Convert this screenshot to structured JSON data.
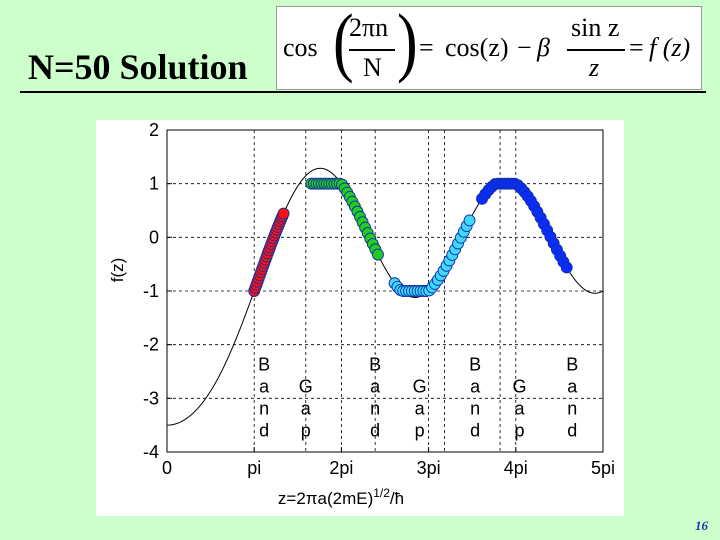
{
  "slide": {
    "title": "N=50 Solution",
    "equation": {
      "cos_left": "cos",
      "numerator_left": "2πn",
      "denominator_left": "N",
      "equals1": "=",
      "cos_right": "cos(z)",
      "minus": "−",
      "beta": "β",
      "numerator_right": "sin z",
      "denominator_right": "z",
      "equals2": "=",
      "rhs": "f (z)"
    },
    "page_number": "16"
  },
  "chart_data": {
    "type": "line",
    "title": "",
    "xlabel_main": "z=2πa(2mE)",
    "xlabel_sup": "1/2",
    "xlabel_end": "/ħ",
    "ylabel": "f(z)",
    "xlim": [
      0,
      15.708
    ],
    "ylim": [
      -4,
      2
    ],
    "grid": true,
    "x_ticks": [
      {
        "value": 0,
        "label": "0"
      },
      {
        "value": 3.1416,
        "label": "pi"
      },
      {
        "value": 6.2832,
        "label": "2pi"
      },
      {
        "value": 9.4248,
        "label": "3pi"
      },
      {
        "value": 12.5664,
        "label": "4pi"
      },
      {
        "value": 15.708,
        "label": "5pi"
      }
    ],
    "y_ticks": [
      {
        "value": 2,
        "label": "2"
      },
      {
        "value": 1,
        "label": "1"
      },
      {
        "value": 0,
        "label": "0"
      },
      {
        "value": -1,
        "label": "-1"
      },
      {
        "value": -2,
        "label": "-2"
      },
      {
        "value": -3,
        "label": "-3"
      },
      {
        "value": -4,
        "label": "-4"
      }
    ],
    "grid_x_extra": [
      5.0,
      7.5,
      10.0,
      12.0
    ],
    "curve": {
      "function": "cos(z) - beta*sin(z)/z",
      "beta": 4.5,
      "x_range": [
        0.02,
        15.708
      ]
    },
    "bands": [
      {
        "color": "#ff1010",
        "x_range": [
          3.1416,
          4.2
        ]
      },
      {
        "color": "#22cc22",
        "x_range": [
          5.2,
          7.6
        ]
      },
      {
        "color": "#40d8ff",
        "x_range": [
          8.2,
          10.9
        ]
      },
      {
        "color": "#0a2cff",
        "x_range": [
          11.35,
          14.4
        ]
      }
    ],
    "annotations": [
      {
        "text": "Band",
        "x": 3.5,
        "y": -3.1
      },
      {
        "text": "Gap",
        "x": 5.0,
        "y": -3.3
      },
      {
        "text": "Band",
        "x": 7.5,
        "y": -3.1
      },
      {
        "text": "Gap",
        "x": 9.1,
        "y": -3.3
      },
      {
        "text": "Band",
        "x": 11.1,
        "y": -3.1
      },
      {
        "text": "Gap",
        "x": 12.7,
        "y": -3.3
      },
      {
        "text": "Band",
        "x": 14.6,
        "y": -3.1
      }
    ]
  }
}
